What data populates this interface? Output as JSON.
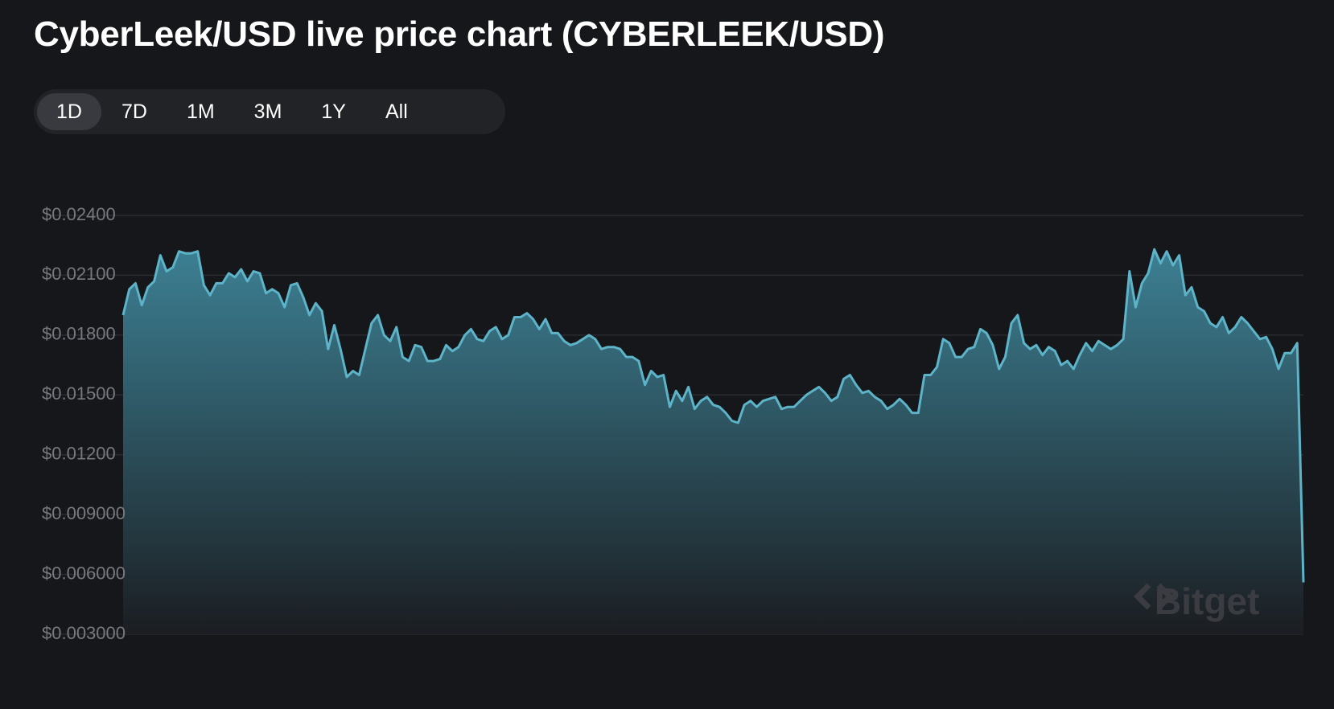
{
  "header": {
    "title": "CyberLeek/USD live price chart (CYBERLEEK/USD)"
  },
  "ranges": {
    "options": [
      "1D",
      "7D",
      "1M",
      "3M",
      "1Y",
      "All"
    ],
    "selected": "1D"
  },
  "watermark": "Bitget",
  "chart_data": {
    "type": "area",
    "color": "#5db3c8",
    "grid": true,
    "ylim": [
      0.003,
      0.024
    ],
    "yticks": [
      {
        "value": 0.024,
        "label": "$0.02400"
      },
      {
        "value": 0.021,
        "label": "$0.02100"
      },
      {
        "value": 0.018,
        "label": "$0.01800"
      },
      {
        "value": 0.015,
        "label": "$0.01500"
      },
      {
        "value": 0.012,
        "label": "$0.01200"
      },
      {
        "value": 0.009,
        "label": "$0.009000"
      },
      {
        "value": 0.006,
        "label": "$0.006000"
      },
      {
        "value": 0.003,
        "label": "$0.003000"
      }
    ],
    "values": [
      0.019,
      0.0203,
      0.0206,
      0.0195,
      0.0204,
      0.0207,
      0.022,
      0.0212,
      0.0214,
      0.0222,
      0.0221,
      0.0221,
      0.0222,
      0.0205,
      0.02,
      0.0206,
      0.0206,
      0.0211,
      0.0209,
      0.0213,
      0.0207,
      0.0212,
      0.0211,
      0.0201,
      0.0203,
      0.0201,
      0.0194,
      0.0205,
      0.0206,
      0.0199,
      0.019,
      0.0196,
      0.0192,
      0.0173,
      0.0185,
      0.0173,
      0.0159,
      0.0162,
      0.016,
      0.0173,
      0.0186,
      0.019,
      0.018,
      0.0177,
      0.0184,
      0.0169,
      0.0167,
      0.0175,
      0.0174,
      0.0167,
      0.0167,
      0.0168,
      0.0175,
      0.0172,
      0.0174,
      0.018,
      0.0183,
      0.0178,
      0.0177,
      0.0182,
      0.0184,
      0.0178,
      0.018,
      0.0189,
      0.0189,
      0.0191,
      0.0188,
      0.0183,
      0.0188,
      0.0181,
      0.0181,
      0.0177,
      0.0175,
      0.0176,
      0.0178,
      0.018,
      0.0178,
      0.0173,
      0.0174,
      0.0174,
      0.0173,
      0.0169,
      0.0169,
      0.0167,
      0.0155,
      0.0162,
      0.0159,
      0.016,
      0.0144,
      0.0152,
      0.0147,
      0.0154,
      0.0143,
      0.0147,
      0.0149,
      0.0145,
      0.0144,
      0.0141,
      0.0137,
      0.0136,
      0.0145,
      0.0147,
      0.0144,
      0.0147,
      0.0148,
      0.0149,
      0.0143,
      0.0144,
      0.0144,
      0.0147,
      0.015,
      0.0152,
      0.0154,
      0.0151,
      0.0147,
      0.0149,
      0.0158,
      0.016,
      0.0155,
      0.0151,
      0.0152,
      0.0149,
      0.0147,
      0.0143,
      0.0145,
      0.0148,
      0.0145,
      0.0141,
      0.0141,
      0.016,
      0.016,
      0.0164,
      0.0178,
      0.0176,
      0.0169,
      0.0169,
      0.0173,
      0.0174,
      0.0183,
      0.0181,
      0.0175,
      0.0163,
      0.0169,
      0.0186,
      0.019,
      0.0176,
      0.0173,
      0.0175,
      0.017,
      0.0174,
      0.0172,
      0.0165,
      0.0167,
      0.0163,
      0.017,
      0.0176,
      0.0172,
      0.0177,
      0.0175,
      0.0173,
      0.0175,
      0.0178,
      0.0212,
      0.0194,
      0.0206,
      0.0211,
      0.0223,
      0.0216,
      0.0222,
      0.0215,
      0.022,
      0.02,
      0.0204,
      0.0194,
      0.0192,
      0.0186,
      0.0184,
      0.0189,
      0.0181,
      0.0184,
      0.0189,
      0.0186,
      0.0182,
      0.0178,
      0.0179,
      0.0173,
      0.0163,
      0.0171,
      0.0171,
      0.0176,
      0.0056
    ]
  }
}
